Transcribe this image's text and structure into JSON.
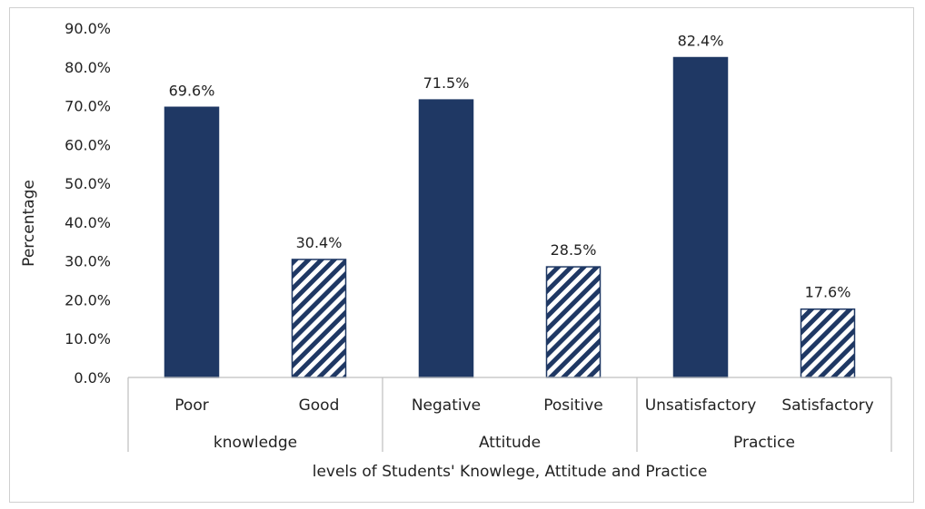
{
  "chart_data": {
    "type": "bar",
    "ylabel": "Percentage",
    "xlabel": "levels of Students' Knowlege, Attitude and Practice",
    "ylim": [
      0,
      90
    ],
    "yticks": [
      "0.0%",
      "10.0%",
      "20.0%",
      "30.0%",
      "40.0%",
      "50.0%",
      "60.0%",
      "70.0%",
      "80.0%",
      "90.0%"
    ],
    "groups": [
      {
        "label": "knowledge",
        "categories": [
          "Poor",
          "Good"
        ],
        "values": [
          69.6,
          30.4
        ],
        "data_labels": [
          "69.6%",
          "30.4%"
        ]
      },
      {
        "label": "Attitude",
        "categories": [
          "Negative",
          "Positive"
        ],
        "values": [
          71.5,
          28.5
        ],
        "data_labels": [
          "71.5%",
          "28.5%"
        ]
      },
      {
        "label": "Practice",
        "categories": [
          "Unsatisfactory",
          "Satisfactory"
        ],
        "values": [
          82.4,
          17.6
        ],
        "data_labels": [
          "82.4%",
          "17.6%"
        ]
      }
    ],
    "bar_styles": [
      "solid",
      "hatched"
    ],
    "colors": {
      "bar": "#1f3864",
      "axis": "#bfbfbf",
      "text": "#222222"
    },
    "grid": false,
    "legend": "none"
  }
}
